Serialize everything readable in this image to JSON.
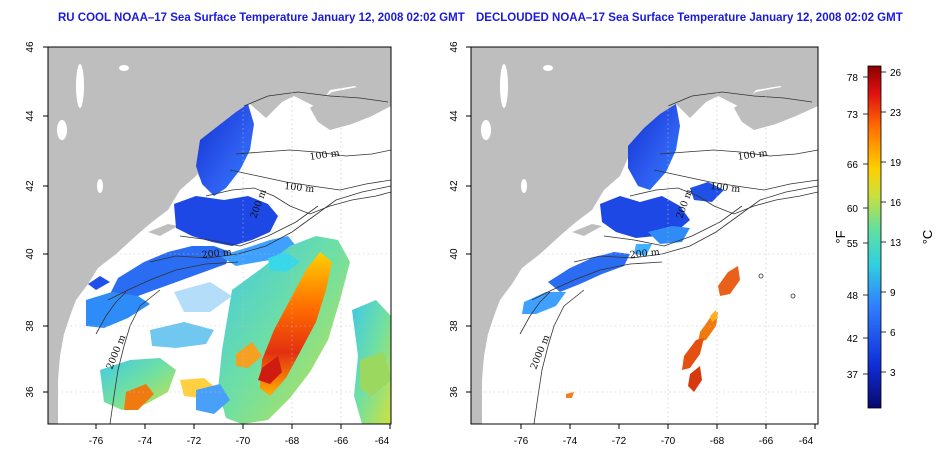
{
  "panels": [
    {
      "title": "RU COOL NOAA–17 Sea Surface Temperature January 12, 2008 02:02 GMT",
      "lat_ticks": [
        "46",
        "44",
        "42",
        "40",
        "38",
        "36"
      ],
      "lon_ticks": [
        "-76",
        "-74",
        "-72",
        "-70",
        "-68",
        "-66",
        "-64"
      ],
      "isobath_labels": [
        "100 m",
        "100 m",
        "200 m",
        "200 m",
        "2000 m"
      ]
    },
    {
      "title": "DECLOUDED NOAA–17 Sea Surface Temperature January 12, 2008 02:02 GMT",
      "lat_ticks": [
        "46",
        "44",
        "42",
        "40",
        "38",
        "36"
      ],
      "lon_ticks": [
        "-76",
        "-74",
        "-72",
        "-70",
        "-68",
        "-66",
        "-64"
      ],
      "isobath_labels": [
        "100 m",
        "100 m",
        "200 m",
        "200 m",
        "2000 m"
      ]
    }
  ],
  "colorbar": {
    "fahrenheit_ticks": [
      "78",
      "73",
      "66",
      "60",
      "55",
      "48",
      "42",
      "37"
    ],
    "celsius_ticks": [
      "26",
      "23",
      "19",
      "16",
      "13",
      "9",
      "6",
      "3"
    ],
    "fahrenheit_label": "°F",
    "celsius_label": "°C"
  },
  "colors": {
    "land": "#bebebe",
    "title": "#1a1adc",
    "ramp": [
      "#08086e",
      "#1030d8",
      "#3080ff",
      "#30d0e0",
      "#60e0a0",
      "#c8e040",
      "#ffd000",
      "#ff7000",
      "#e01010",
      "#8c0000"
    ]
  }
}
